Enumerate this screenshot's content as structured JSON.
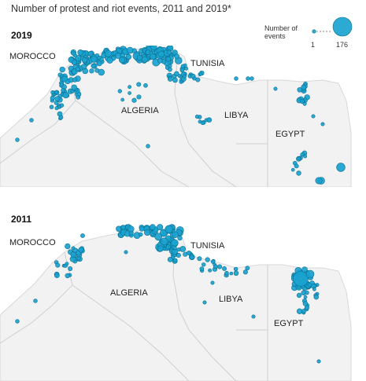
{
  "title": "Number of protest and riot events, 2011 and 2019*",
  "legend": {
    "title": "Number of events",
    "min": "1",
    "max": "176"
  },
  "colors": {
    "dot": "#1aa3cf",
    "dot_stroke": "#0b6f93",
    "land": "#f2f2f2",
    "border": "#c9c9c9"
  },
  "maps": [
    {
      "year": "2019",
      "labels": {
        "morocco": "MOROCCO",
        "algeria": "ALGERIA",
        "tunisia": "TUNISIA",
        "libya": "LIBYA",
        "egypt": "EGYPT"
      }
    },
    {
      "year": "2011",
      "labels": {
        "morocco": "MOROCCO",
        "algeria": "ALGERIA",
        "tunisia": "TUNISIA",
        "libya": "LIBYA",
        "egypt": "EGYPT"
      }
    }
  ]
}
